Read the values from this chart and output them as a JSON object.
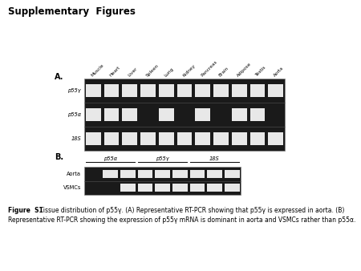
{
  "title": "Supplementary  Figures",
  "panel_a_label": "A.",
  "panel_b_label": "B.",
  "panel_a_tissues": [
    "Muscle",
    "Heart",
    "Liver",
    "Spleen",
    "Lung",
    "Kidney",
    "Pancreas",
    "Brain",
    "Adipose",
    "Testis",
    "Aorta"
  ],
  "panel_a_rows": [
    "p55γ",
    "p55α",
    "18S"
  ],
  "panel_b_cols": [
    "p55α",
    "p55γ",
    "18S"
  ],
  "panel_b_rows": [
    "Aorta",
    "VSMCs"
  ],
  "fig_caption_bold": "Figure  S1",
  "fig_caption_rest": " Tissue distribution of p55γ. (A) Representative RT-PCR showing that p55γ is expressed in aorta. (B)",
  "fig_caption_line2": "Representative RT-PCR showing the expression of p55γ mRNA is dominant in aorta and VSMCs rather than p55α.",
  "bg_color": "#ffffff",
  "gel_bg": "#1a1a1a",
  "band_white": "#e8e8e8",
  "gel_border": "#888888"
}
